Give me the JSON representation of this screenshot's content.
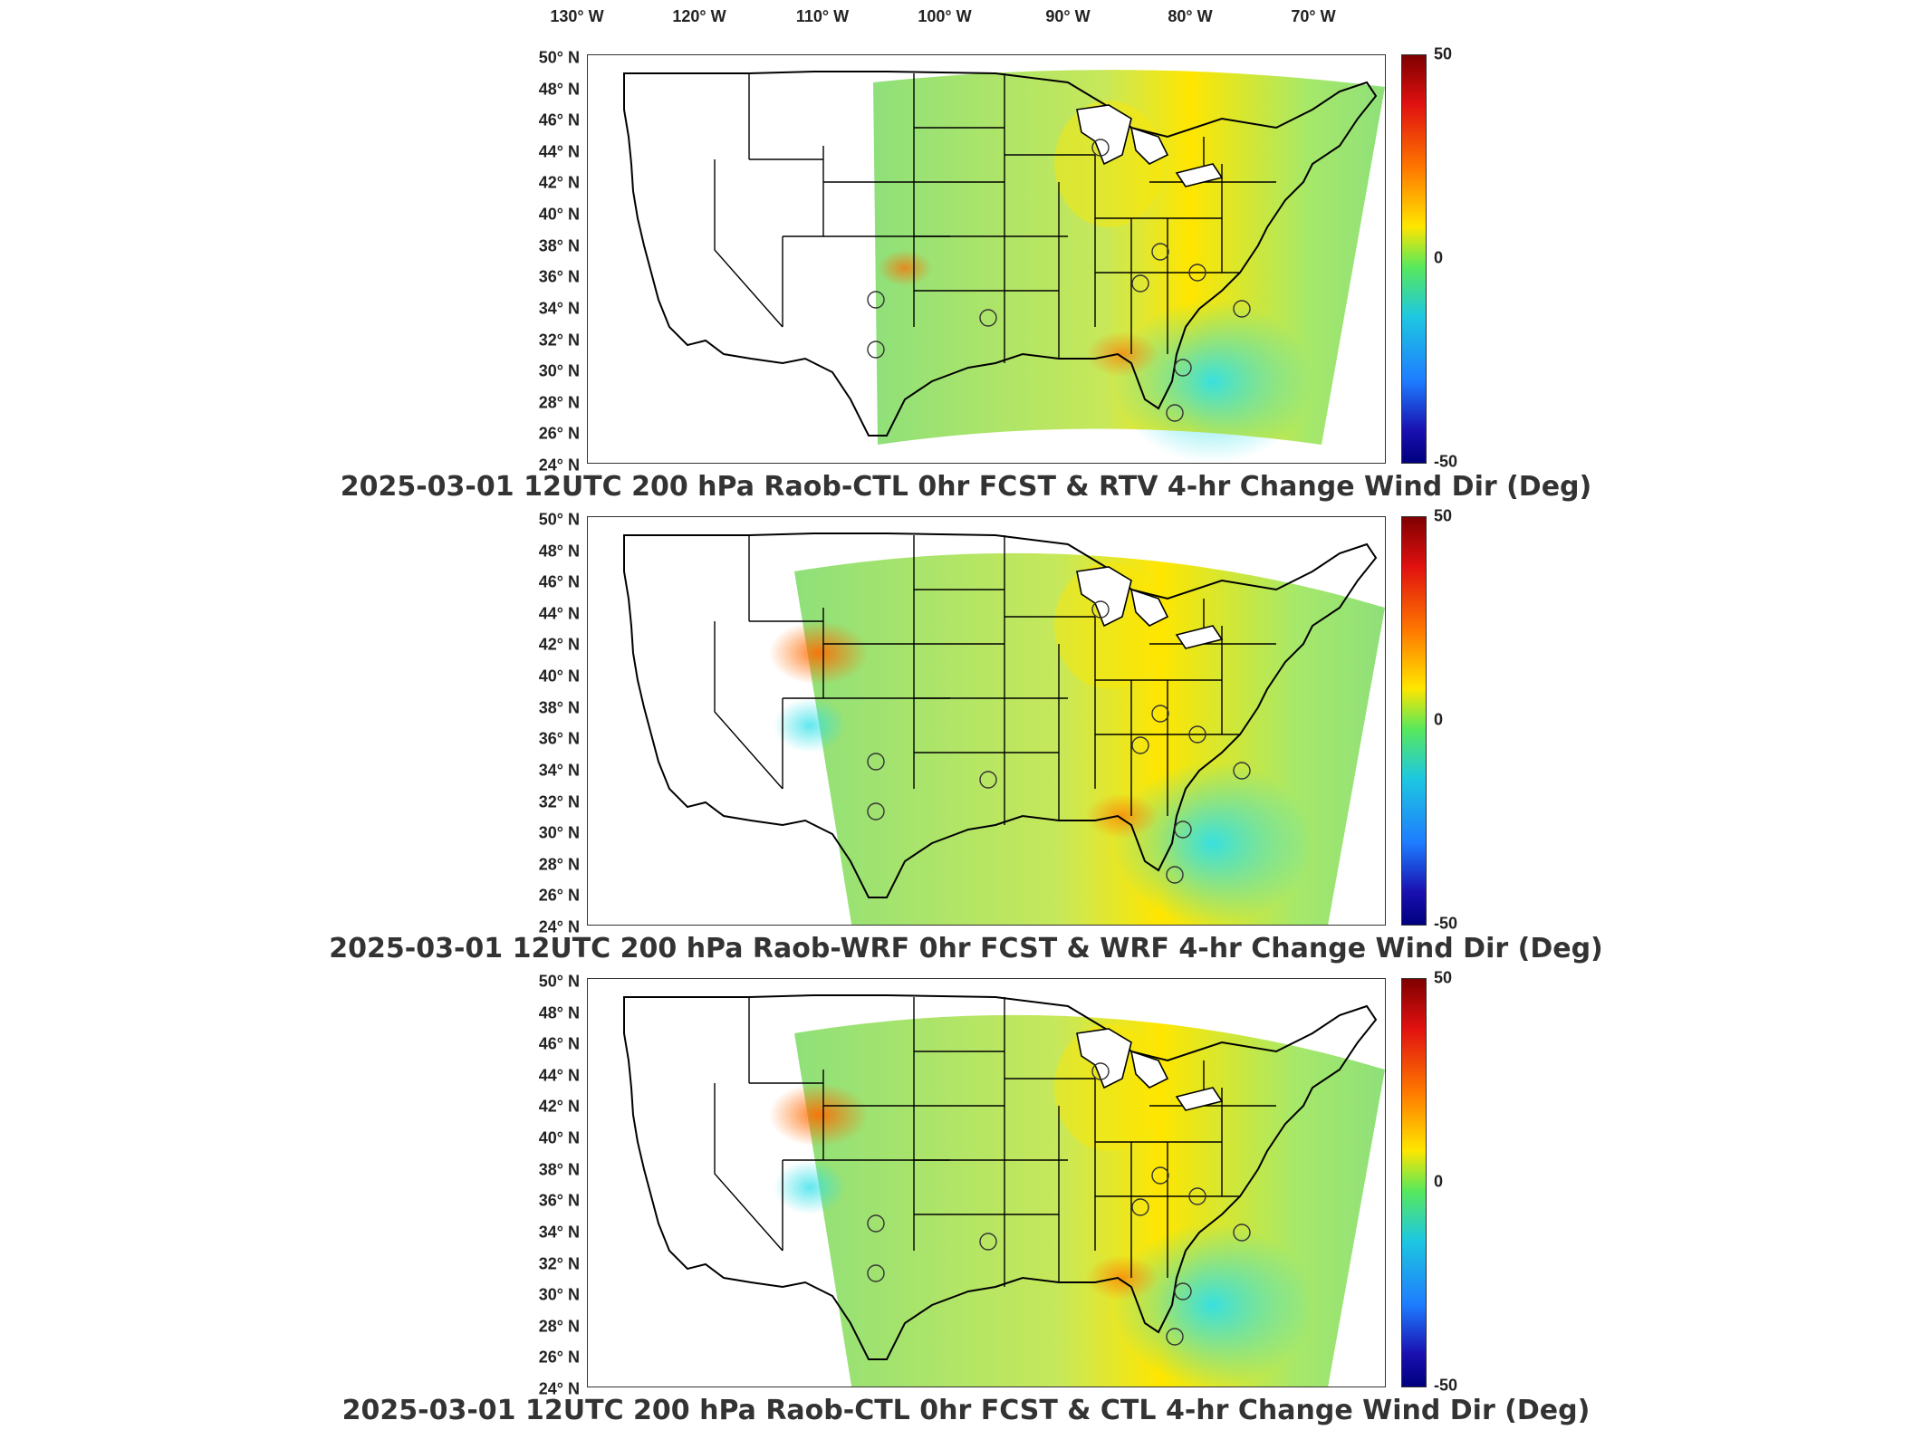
{
  "longitude_labels": [
    "130° W",
    "120° W",
    "110° W",
    "100° W",
    "90° W",
    "80° W",
    "70° W"
  ],
  "latitude_labels": [
    "50° N",
    "48° N",
    "46° N",
    "44° N",
    "42° N",
    "40° N",
    "38° N",
    "36° N",
    "34° N",
    "32° N",
    "30° N",
    "28° N",
    "26° N",
    "24° N"
  ],
  "colorbar": {
    "max": "50",
    "mid": "0",
    "min": "-50"
  },
  "panels": [
    {
      "caption": "2025-03-01 12UTC 200 hPa Raob-CTL 0hr FCST & RTV 4-hr Change Wind Dir (Deg)",
      "field_west_edge": "east"
    },
    {
      "caption": "2025-03-01 12UTC 200 hPa Raob-WRF 0hr FCST & WRF 4-hr Change Wind Dir (Deg)",
      "field_west_edge": "west"
    },
    {
      "caption": "2025-03-01 12UTC 200 hPa Raob-CTL 0hr FCST & CTL 4-hr Change Wind Dir (Deg)",
      "field_west_edge": "west"
    }
  ],
  "colors": {
    "field_base": "#8fe07a",
    "warm": "#ffe600",
    "hot": "#ff6a00",
    "cool": "#30e0e8"
  }
}
